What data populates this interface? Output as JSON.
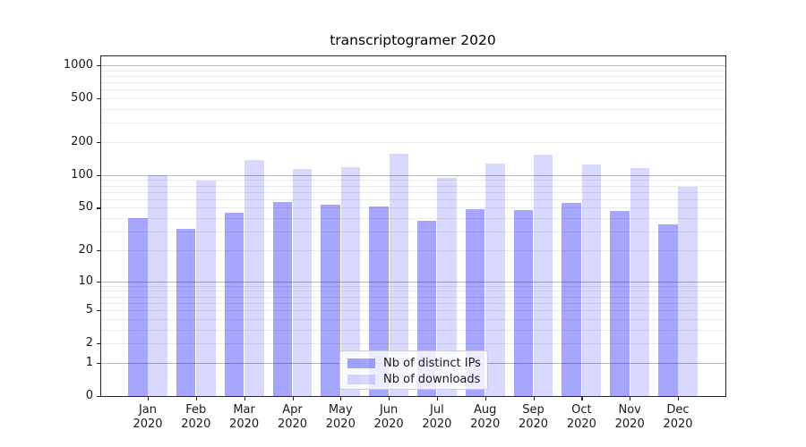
{
  "title": "transcriptogramer 2020",
  "chart_data": {
    "type": "bar",
    "title": "transcriptogramer 2020",
    "categories": [
      "Jan 2020",
      "Feb 2020",
      "Mar 2020",
      "Apr 2020",
      "May 2020",
      "Jun 2020",
      "Jul 2020",
      "Aug 2020",
      "Sep 2020",
      "Oct 2020",
      "Nov 2020",
      "Dec 2020"
    ],
    "x_tick_months": [
      "Jan",
      "Feb",
      "Mar",
      "Apr",
      "May",
      "Jun",
      "Jul",
      "Aug",
      "Sep",
      "Oct",
      "Nov",
      "Dec"
    ],
    "x_tick_year": "2020",
    "series": [
      {
        "name": "Nb of distinct IPs",
        "color": "rgba(0,0,255,0.35)",
        "values": [
          40,
          32,
          45,
          56,
          53,
          51,
          38,
          49,
          48,
          55,
          47,
          35
        ]
      },
      {
        "name": "Nb of downloads",
        "color": "rgba(0,0,255,0.15)",
        "values": [
          100,
          89,
          137,
          114,
          119,
          157,
          95,
          127,
          153,
          124,
          115,
          78
        ]
      }
    ],
    "xlabel": "",
    "ylabel": "",
    "y_scale": "log1p",
    "y_tick_values": [
      0,
      1,
      2,
      5,
      10,
      20,
      50,
      100,
      200,
      500,
      1000
    ],
    "y_minor_grid_values": [
      2,
      3,
      4,
      5,
      6,
      7,
      8,
      9,
      20,
      30,
      40,
      50,
      60,
      70,
      80,
      90,
      200,
      300,
      400,
      500,
      600,
      700,
      800,
      900
    ],
    "y_major_grid_values": [
      1,
      10,
      100,
      1000
    ],
    "ylim": [
      0,
      1230
    ],
    "grid": true,
    "legend_position": "lower-center",
    "legend_entries": [
      "Nb of distinct IPs",
      "Nb of downloads"
    ]
  },
  "colors": {
    "bar_distinct_ips": "rgba(0,0,255,0.35)",
    "bar_downloads": "rgba(0,0,255,0.15)",
    "grid_major": "#b6b6b6",
    "grid_minor": "#ebebeb",
    "spine": "#262626",
    "text": "#1a1a1a",
    "legend_border": "#cccccc"
  }
}
